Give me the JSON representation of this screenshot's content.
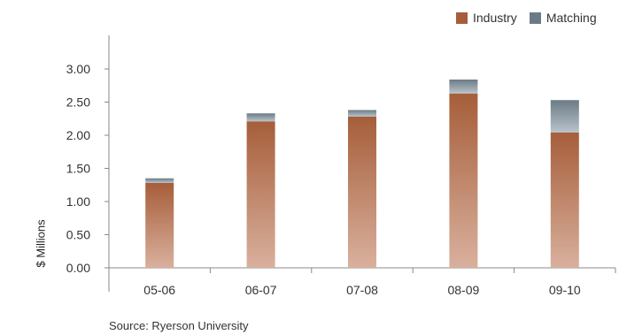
{
  "chart_data": {
    "type": "bar",
    "stacked": true,
    "categories": [
      "05-06",
      "06-07",
      "07-08",
      "08-09",
      "09-10"
    ],
    "series": [
      {
        "name": "Industry",
        "values": [
          1.28,
          2.21,
          2.28,
          2.63,
          2.04
        ],
        "color": "#a65e3a"
      },
      {
        "name": "Matching",
        "values": [
          0.07,
          0.12,
          0.1,
          0.21,
          0.49
        ],
        "color": "#6b7b86"
      }
    ],
    "ylabel": "$ Millions",
    "ylim": [
      0,
      3.0
    ],
    "yticks": [
      "0.00",
      "0.50",
      "1.00",
      "1.50",
      "2.00",
      "2.50",
      "3.00"
    ],
    "grid": false,
    "legend": "top-right"
  },
  "source": "Source: Ryerson University"
}
